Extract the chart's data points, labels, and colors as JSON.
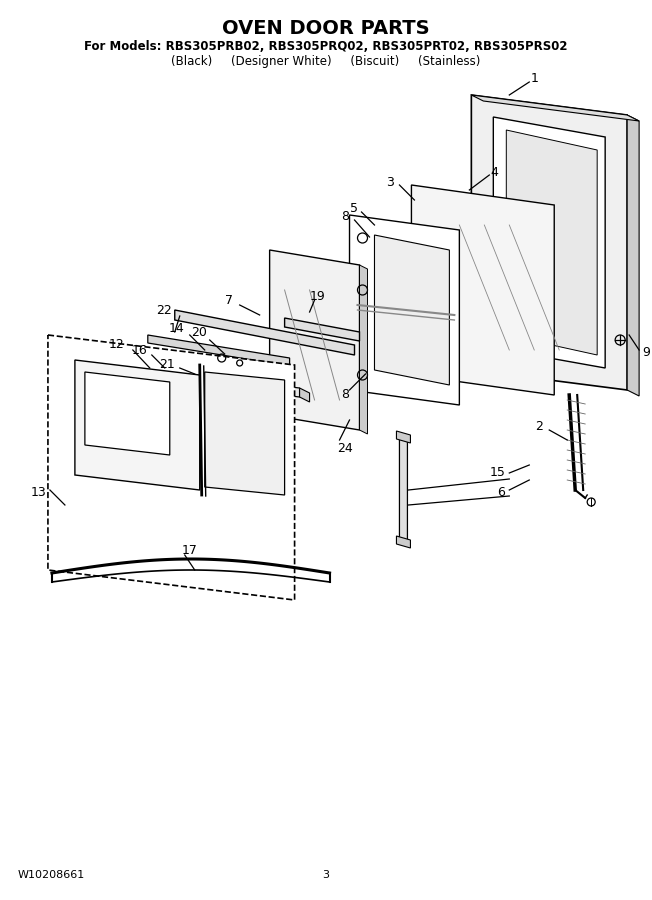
{
  "title": "OVEN DOOR PARTS",
  "subtitle1": "For Models: RBS305PRB02, RBS305PRQ02, RBS305PRT02, RBS305PRS02",
  "subtitle2": "(Black)     (Designer White)     (Biscuit)     (Stainless)",
  "footer_left": "W10208661",
  "footer_center": "3",
  "bg_color": "#ffffff",
  "line_color": "#000000",
  "title_fontsize": 14,
  "subtitle_fontsize": 8,
  "label_fontsize": 9,
  "footer_fontsize": 8
}
